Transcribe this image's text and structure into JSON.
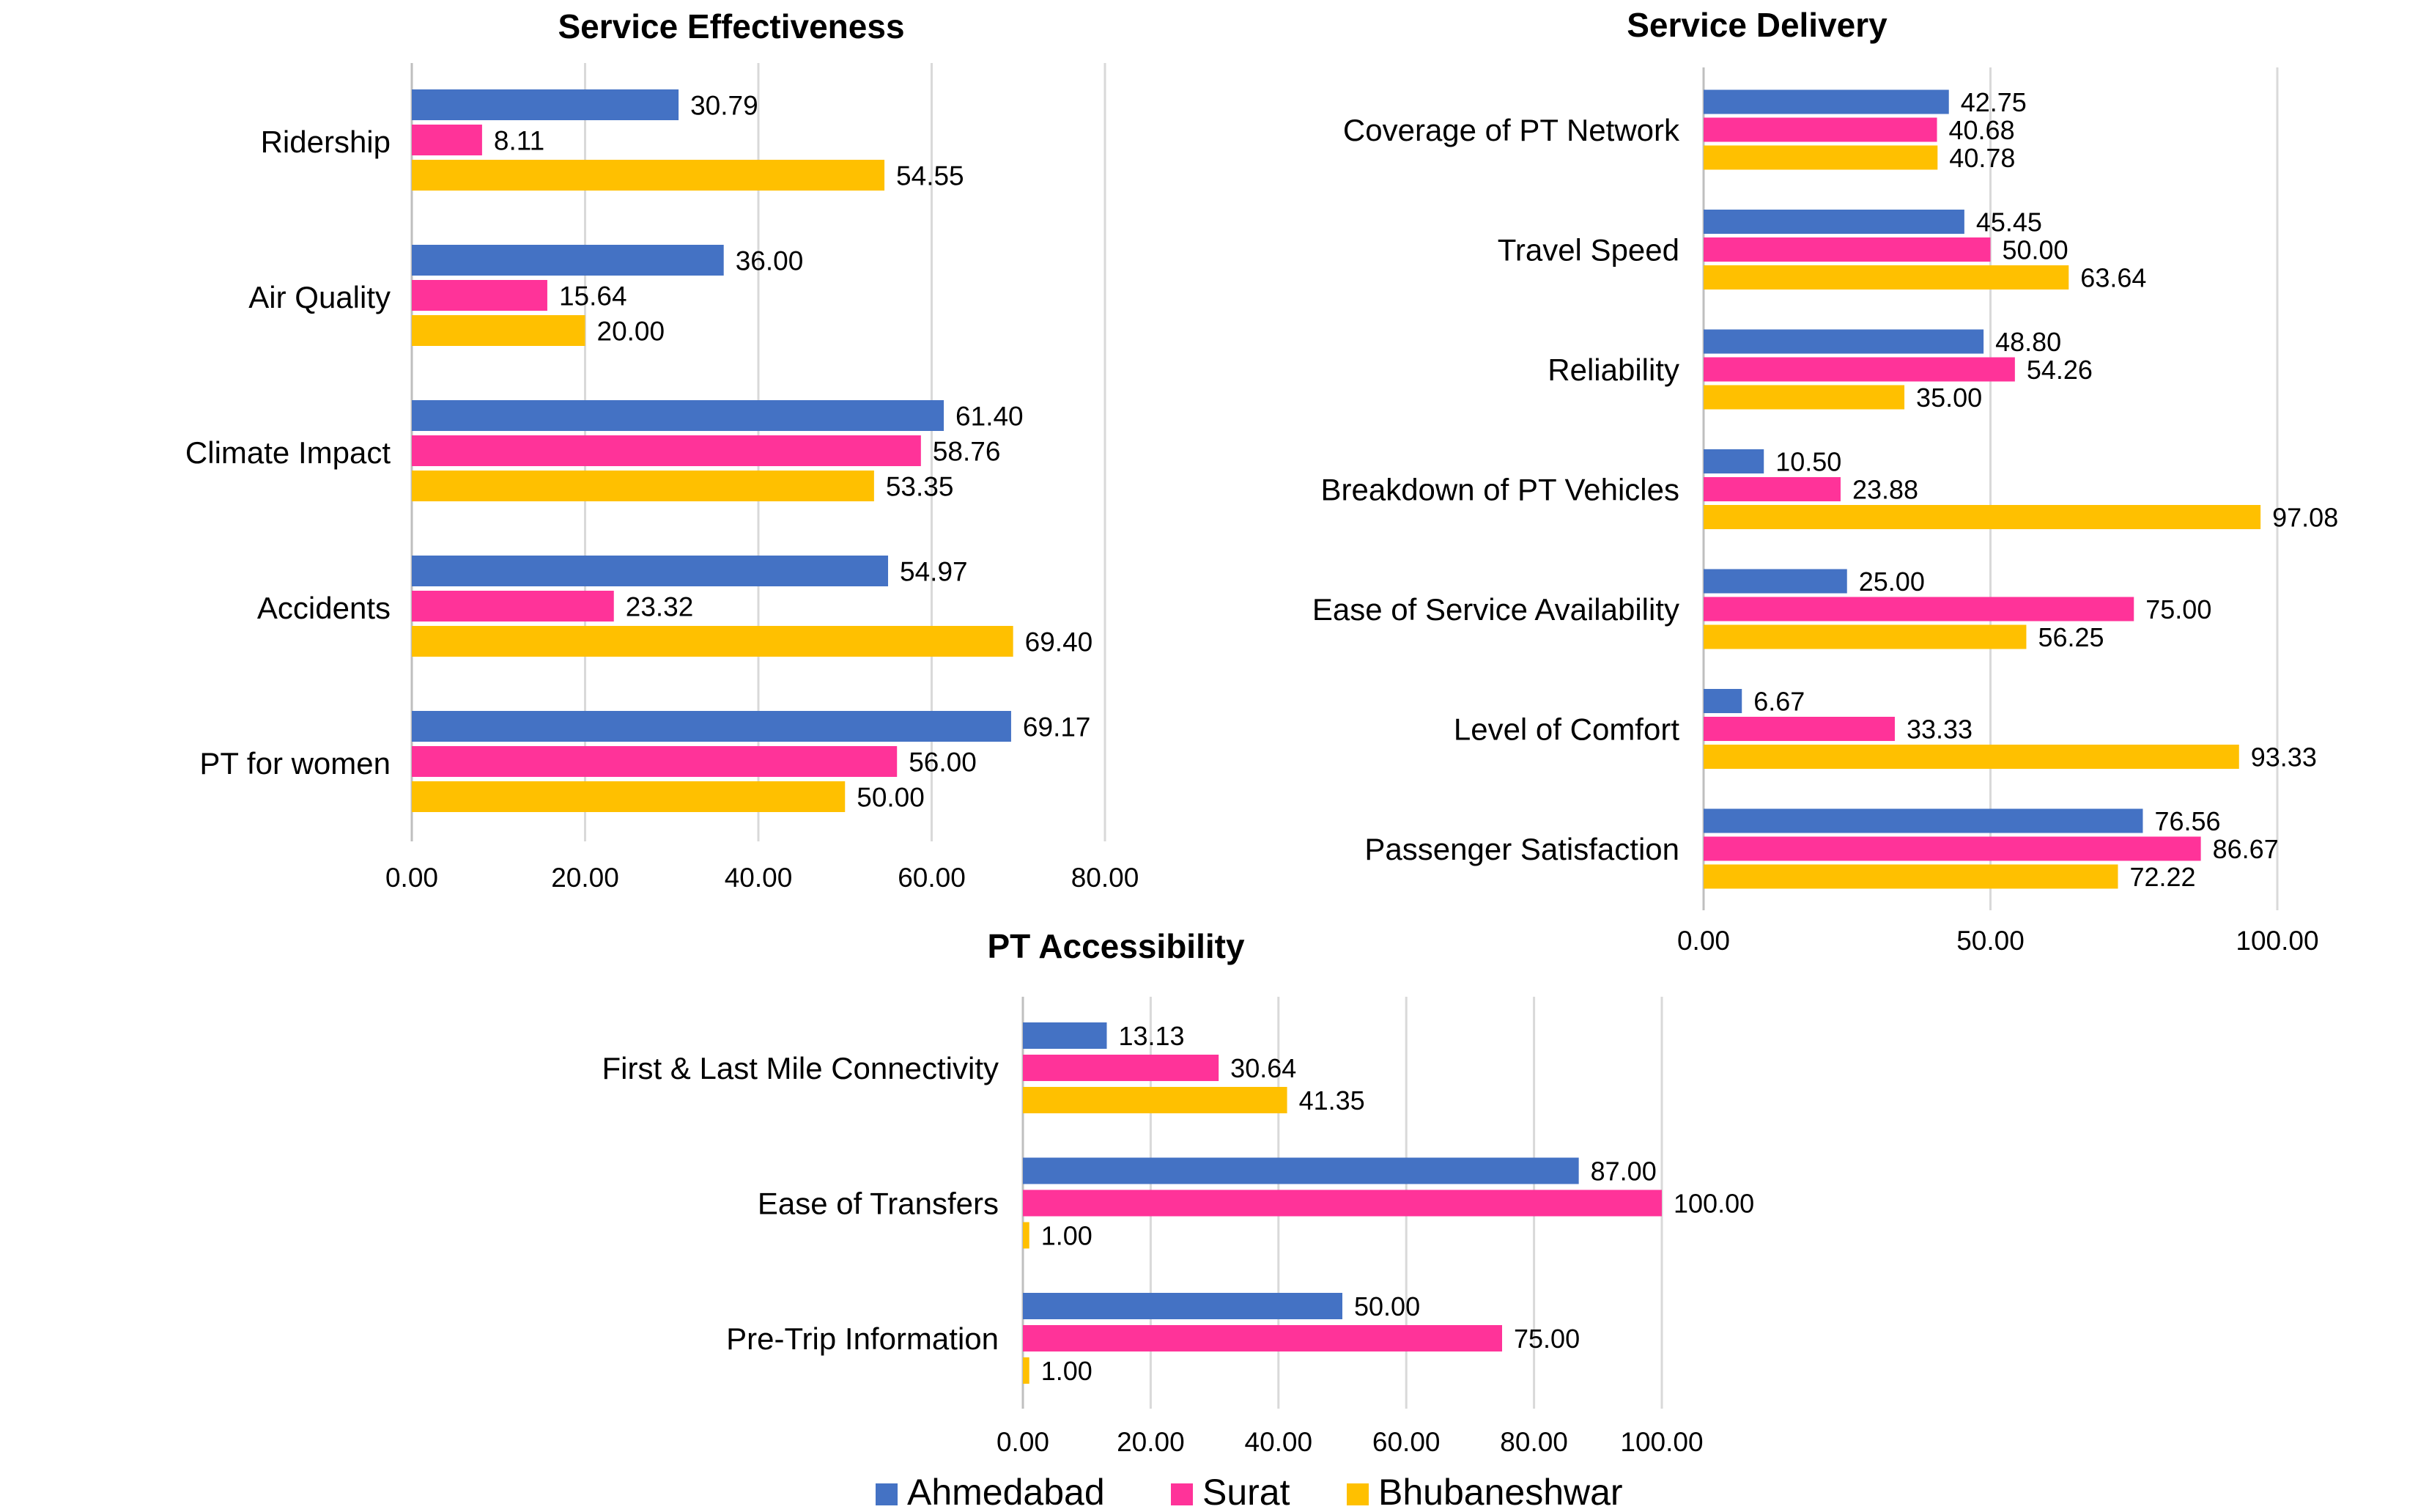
{
  "legend": [
    {
      "name": "Ahmedabad",
      "color": "#4472C4"
    },
    {
      "name": "Surat",
      "color": "#FF3399"
    },
    {
      "name": "Bhubaneshwar",
      "color": "#FFC000"
    }
  ],
  "chart_data": [
    {
      "type": "bar",
      "orientation": "horizontal",
      "title": "Service Effectiveness",
      "categories": [
        "Ridership",
        "Air Quality",
        "Climate Impact",
        "Accidents",
        "PT for women"
      ],
      "series": [
        {
          "name": "Ahmedabad",
          "values": [
            30.79,
            36.0,
            61.4,
            54.97,
            69.17
          ]
        },
        {
          "name": "Surat",
          "values": [
            8.11,
            15.64,
            58.76,
            23.32,
            56.0
          ]
        },
        {
          "name": "Bhubaneshwar",
          "values": [
            54.55,
            20.0,
            53.35,
            69.4,
            50.0
          ]
        }
      ],
      "xlim": [
        0,
        80
      ],
      "xticks": [
        "0.00",
        "20.00",
        "40.00",
        "60.00",
        "80.00"
      ],
      "grid": true
    },
    {
      "type": "bar",
      "orientation": "horizontal",
      "title": "Service Delivery",
      "categories": [
        "Coverage of PT Network",
        "Travel Speed",
        "Reliability",
        "Breakdown of PT Vehicles",
        "Ease of Service Availability",
        "Level of Comfort",
        "Passenger Satisfaction"
      ],
      "series": [
        {
          "name": "Ahmedabad",
          "values": [
            42.75,
            45.45,
            48.8,
            10.5,
            25.0,
            6.67,
            76.56
          ]
        },
        {
          "name": "Surat",
          "values": [
            40.68,
            50.0,
            54.26,
            23.88,
            75.0,
            33.33,
            86.67
          ]
        },
        {
          "name": "Bhubaneshwar",
          "values": [
            40.78,
            63.64,
            35.0,
            97.08,
            56.25,
            93.33,
            72.22
          ]
        }
      ],
      "xlim": [
        0,
        100
      ],
      "xticks": [
        "0.00",
        "50.00",
        "100.00"
      ],
      "grid": true
    },
    {
      "type": "bar",
      "orientation": "horizontal",
      "title": "PT Accessibility",
      "categories": [
        "First & Last Mile Connectivity",
        "Ease of Transfers",
        "Pre-Trip Information"
      ],
      "series": [
        {
          "name": "Ahmedabad",
          "values": [
            13.13,
            87.0,
            50.0
          ]
        },
        {
          "name": "Surat",
          "values": [
            30.64,
            100.0,
            75.0
          ]
        },
        {
          "name": "Bhubaneshwar",
          "values": [
            41.35,
            1.0,
            1.0
          ]
        }
      ],
      "xlim": [
        0,
        100
      ],
      "xticks": [
        "0.00",
        "20.00",
        "40.00",
        "60.00",
        "80.00",
        "100.00"
      ],
      "grid": true
    }
  ]
}
